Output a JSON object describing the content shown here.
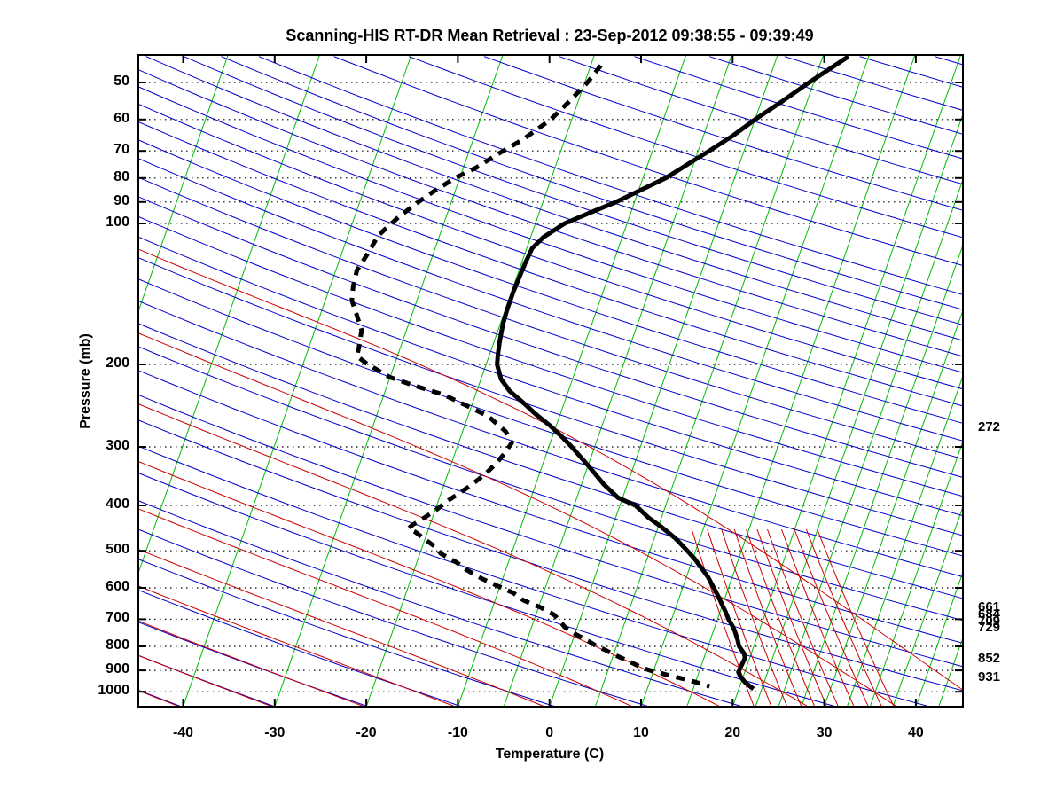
{
  "figure": {
    "title": "Scanning-HIS RT-DR Mean Retrieval : 23-Sep-2012 09:38:55 - 09:39:49",
    "xlabel": "Temperature (C)",
    "ylabel": "Pressure (mb)"
  },
  "right_level_labels": [
    {
      "pressure": 272,
      "text": "272"
    },
    {
      "pressure": 661,
      "text": "661"
    },
    {
      "pressure": 684,
      "text": "684"
    },
    {
      "pressure": 709,
      "text": "709"
    },
    {
      "pressure": 729,
      "text": "729"
    },
    {
      "pressure": 852,
      "text": "852"
    },
    {
      "pressure": 931,
      "text": "931"
    }
  ],
  "chart_data": {
    "type": "line",
    "subtype": "skew-t-log-p",
    "title": "Scanning-HIS RT-DR Mean Retrieval : 23-Sep-2012 09:38:55 - 09:39:49",
    "xlabel": "Temperature (C)",
    "ylabel": "Pressure (mb)",
    "xlim": [
      -45,
      45
    ],
    "pressure_lim": [
      44,
      1073
    ],
    "temp_ticks": [
      -40,
      -30,
      -20,
      -10,
      0,
      10,
      20,
      30,
      40
    ],
    "pressure_ticks": [
      50,
      60,
      70,
      80,
      90,
      100,
      200,
      300,
      400,
      500,
      600,
      700,
      800,
      900,
      1000
    ],
    "grid": "dotted-horizontal-at-pressure-ticks",
    "colors": {
      "isotherm": "#00BB00",
      "dry_adiabat": "#0000CC",
      "moist_adiabat": "#CC0000",
      "mixing_ratio": "#CC0000",
      "profile": "#000000",
      "grid": "#000000"
    },
    "background_lines": {
      "isotherms_C": [
        -120,
        -110,
        -100,
        -90,
        -80,
        -70,
        -60,
        -50,
        -40,
        -30,
        -20,
        -10,
        -5,
        0,
        5,
        10,
        15,
        20,
        22.5,
        25,
        27.5,
        30,
        32.5,
        35,
        37.5,
        40,
        42.5,
        45
      ],
      "dry_adiabats_theta_C": [
        -75,
        -65,
        -55,
        -45,
        -35,
        -25,
        -15,
        -5,
        5,
        15,
        25,
        35,
        45,
        55,
        65,
        75,
        85,
        95,
        105,
        115,
        125,
        135,
        145,
        155,
        165,
        175,
        185,
        195,
        205,
        215,
        225,
        235,
        245,
        255,
        275,
        295,
        315,
        335,
        355,
        375,
        395,
        415,
        435
      ],
      "moist_adiabats_thetaw_C": [
        -75,
        -65,
        -55,
        -45,
        -35,
        -25,
        -15,
        -5,
        5,
        15,
        25,
        35,
        45
      ],
      "mixing_ratio_g_kg": [
        16,
        18,
        20,
        22,
        24,
        26,
        28,
        31,
        34,
        37,
        40
      ]
    },
    "series": [
      {
        "name": "temperature",
        "style": "solid",
        "units": [
          "mb",
          "C"
        ],
        "points": [
          [
            44,
            7.8
          ],
          [
            50,
            4.5
          ],
          [
            55,
            2.2
          ],
          [
            60,
            0.0
          ],
          [
            65,
            -1.8
          ],
          [
            70,
            -3.8
          ],
          [
            80,
            -7.5
          ],
          [
            90,
            -12.0
          ],
          [
            95,
            -14.5
          ],
          [
            100,
            -16.8
          ],
          [
            107,
            -18.6
          ],
          [
            113,
            -19.4
          ],
          [
            122,
            -19.6
          ],
          [
            130,
            -19.7
          ],
          [
            140,
            -19.8
          ],
          [
            152,
            -19.8
          ],
          [
            164,
            -19.7
          ],
          [
            178,
            -19.4
          ],
          [
            190,
            -19.1
          ],
          [
            200,
            -18.8
          ],
          [
            215,
            -17.8
          ],
          [
            228,
            -16.4
          ],
          [
            242,
            -14.4
          ],
          [
            256,
            -12.6
          ],
          [
            270,
            -10.7
          ],
          [
            285,
            -9.0
          ],
          [
            300,
            -7.5
          ],
          [
            330,
            -4.9
          ],
          [
            360,
            -2.6
          ],
          [
            385,
            -0.5
          ],
          [
            400,
            1.7
          ],
          [
            425,
            3.6
          ],
          [
            444,
            5.3
          ],
          [
            470,
            7.3
          ],
          [
            500,
            9.1
          ],
          [
            520,
            10.2
          ],
          [
            542,
            11.2
          ],
          [
            570,
            12.4
          ],
          [
            600,
            13.4
          ],
          [
            625,
            14.2
          ],
          [
            650,
            14.9
          ],
          [
            675,
            15.6
          ],
          [
            700,
            16.2
          ],
          [
            720,
            16.8
          ],
          [
            740,
            17.3
          ],
          [
            770,
            17.9
          ],
          [
            800,
            18.4
          ],
          [
            828,
            19.2
          ],
          [
            847,
            19.5
          ],
          [
            877,
            19.4
          ],
          [
            908,
            19.3
          ],
          [
            928,
            19.7
          ],
          [
            957,
            20.5
          ],
          [
            986,
            21.6
          ]
        ]
      },
      {
        "name": "dew_point",
        "style": "dashed",
        "units": [
          "mb",
          "C"
        ],
        "points": [
          [
            46,
            -18.9
          ],
          [
            50,
            -19.7
          ],
          [
            55,
            -21.0
          ],
          [
            60,
            -22.3
          ],
          [
            66,
            -24.5
          ],
          [
            71,
            -26.7
          ],
          [
            76,
            -28.6
          ],
          [
            80,
            -30.5
          ],
          [
            85,
            -32.2
          ],
          [
            90,
            -33.6
          ],
          [
            97,
            -35.2
          ],
          [
            106,
            -36.7
          ],
          [
            115,
            -37.1
          ],
          [
            126,
            -37.7
          ],
          [
            136,
            -37.5
          ],
          [
            146,
            -37.1
          ],
          [
            157,
            -36.0
          ],
          [
            169,
            -34.9
          ],
          [
            180,
            -34.6
          ],
          [
            192,
            -34.4
          ],
          [
            199,
            -33.1
          ],
          [
            208,
            -31.1
          ],
          [
            213,
            -30.0
          ],
          [
            222,
            -27.0
          ],
          [
            232,
            -23.5
          ],
          [
            247,
            -20.1
          ],
          [
            258,
            -17.8
          ],
          [
            278,
            -15.3
          ],
          [
            294,
            -14.2
          ],
          [
            310,
            -14.6
          ],
          [
            325,
            -15.1
          ],
          [
            343,
            -15.9
          ],
          [
            365,
            -17.2
          ],
          [
            390,
            -18.9
          ],
          [
            411,
            -20.0
          ],
          [
            430,
            -21.2
          ],
          [
            440,
            -21.9
          ],
          [
            448,
            -22.2
          ],
          [
            456,
            -21.3
          ],
          [
            470,
            -20.2
          ],
          [
            490,
            -18.6
          ],
          [
            507,
            -17.7
          ],
          [
            530,
            -15.6
          ],
          [
            550,
            -14.2
          ],
          [
            574,
            -12.2
          ],
          [
            595,
            -10.2
          ],
          [
            615,
            -8.3
          ],
          [
            638,
            -6.9
          ],
          [
            660,
            -4.8
          ],
          [
            685,
            -3.0
          ],
          [
            705,
            -2.2
          ],
          [
            729,
            -1.3
          ],
          [
            755,
            0.2
          ],
          [
            779,
            1.7
          ],
          [
            800,
            2.9
          ],
          [
            814,
            3.9
          ],
          [
            835,
            5.2
          ],
          [
            854,
            6.5
          ],
          [
            870,
            7.5
          ],
          [
            885,
            8.4
          ],
          [
            900,
            9.6
          ],
          [
            911,
            10.7
          ],
          [
            921,
            11.7
          ],
          [
            931,
            12.8
          ],
          [
            941,
            13.8
          ],
          [
            952,
            14.9
          ],
          [
            963,
            15.8
          ],
          [
            973,
            16.7
          ]
        ]
      }
    ],
    "annotations_right_side_pressures_mb": [
      272,
      661,
      684,
      709,
      729,
      852,
      931
    ]
  }
}
